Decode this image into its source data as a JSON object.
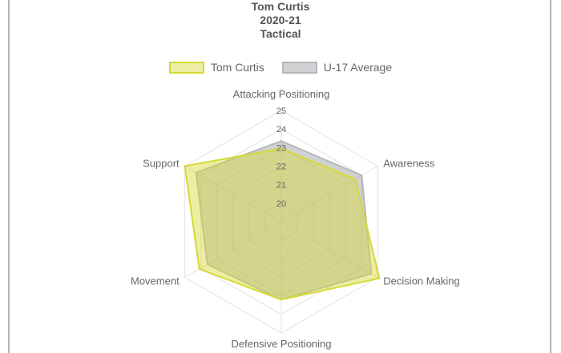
{
  "title_lines": [
    "Tom Curtis",
    "2020-21",
    "Tactical"
  ],
  "colors": {
    "player_stroke": "#d6d936",
    "player_fill": "rgba(214,217,54,0.45)",
    "average_stroke": "#b6b7bd",
    "average_fill": "rgba(150,152,158,0.45)",
    "grid": "#e2e2e2",
    "label": "#666666"
  },
  "chart_data": {
    "type": "radar",
    "axes": [
      "Attacking Positioning",
      "Awareness",
      "Decision Making",
      "Defensive Positioning",
      "Movement",
      "Support"
    ],
    "scale": {
      "min": 19,
      "max": 25,
      "ticks": [
        20,
        21,
        22,
        23,
        24,
        25
      ]
    },
    "series": [
      {
        "name": "Tom Curtis",
        "values": [
          22.95,
          23.6,
          25.1,
          23.2,
          24.1,
          25.0
        ]
      },
      {
        "name": "U-17 Average",
        "values": [
          23.35,
          24.0,
          24.6,
          23.2,
          23.6,
          24.3
        ]
      }
    ]
  }
}
